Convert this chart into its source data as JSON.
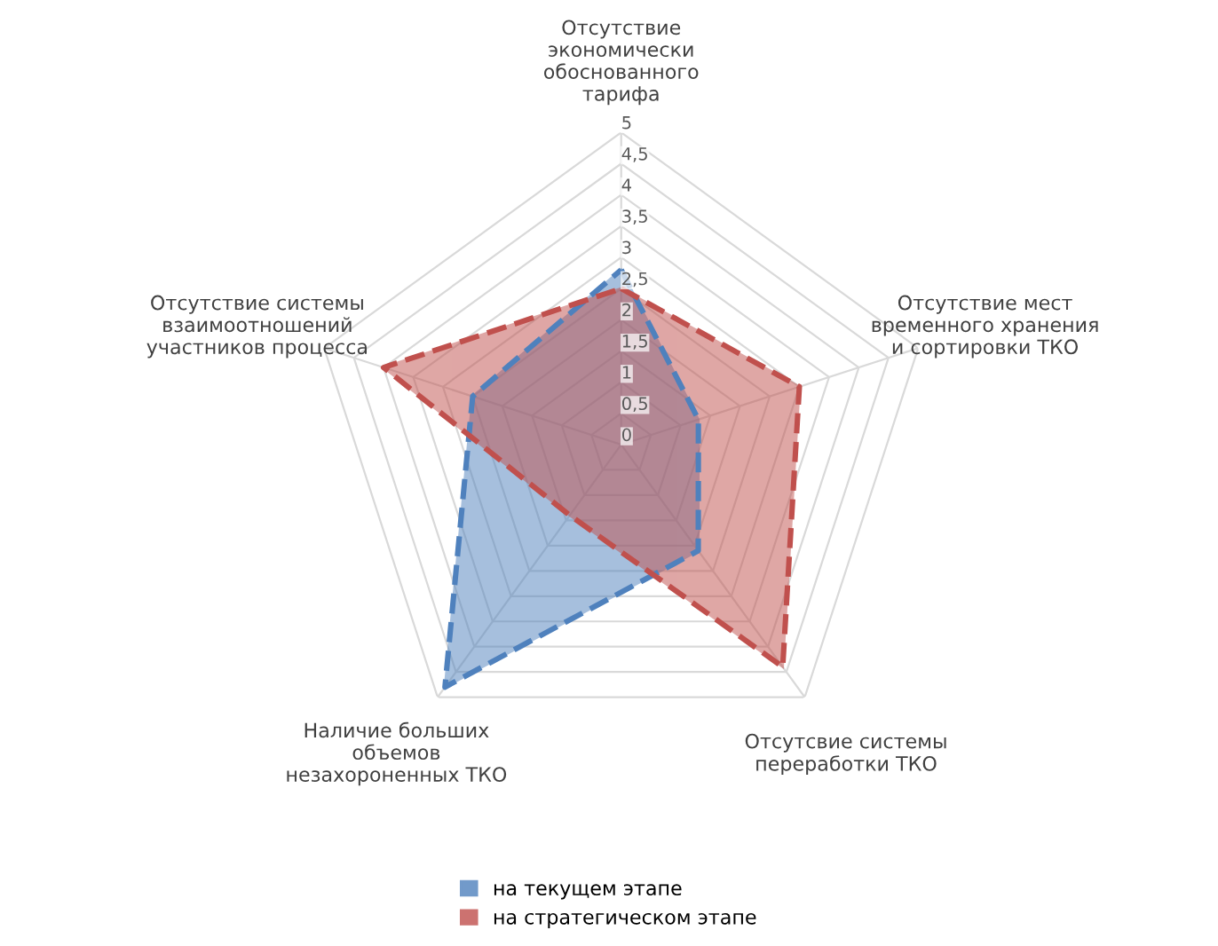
{
  "chart_data": {
    "type": "radar",
    "categories": [
      "Отсутствие\nэкономически\nобоснованного\nтарифа",
      "Отсутствие мест\nвременного хранения\nи сортировки ТКО",
      "Отсутсвие системы\nпереработки ТКО",
      "Наличие больших\nобъемов\nнезахороненных ТКО",
      "Отсутствие системы\nвзаимоотношений\nучастников процесса"
    ],
    "series": [
      {
        "name": "на текущем этапе",
        "color": "#4f81bd",
        "values": [
          2.8,
          1.3,
          2.1,
          4.8,
          2.5
        ]
      },
      {
        "name": "на стратегическом этапе",
        "color": "#c0504d",
        "values": [
          2.5,
          3,
          4.4,
          1.4,
          4
        ]
      }
    ],
    "ylim": [
      0,
      5
    ],
    "yticks": [
      0,
      {
        "value": 0.5,
        "label": "0,5"
      },
      1,
      {
        "value": 1.5,
        "label": "1,5"
      },
      2,
      {
        "value": 2.5,
        "label": "2,5"
      },
      3,
      {
        "value": 3.5,
        "label": "3,5"
      },
      4,
      {
        "value": 4.5,
        "label": "4,5"
      },
      5
    ],
    "grid": true,
    "legend": "bottom",
    "line_style": "dashed"
  }
}
